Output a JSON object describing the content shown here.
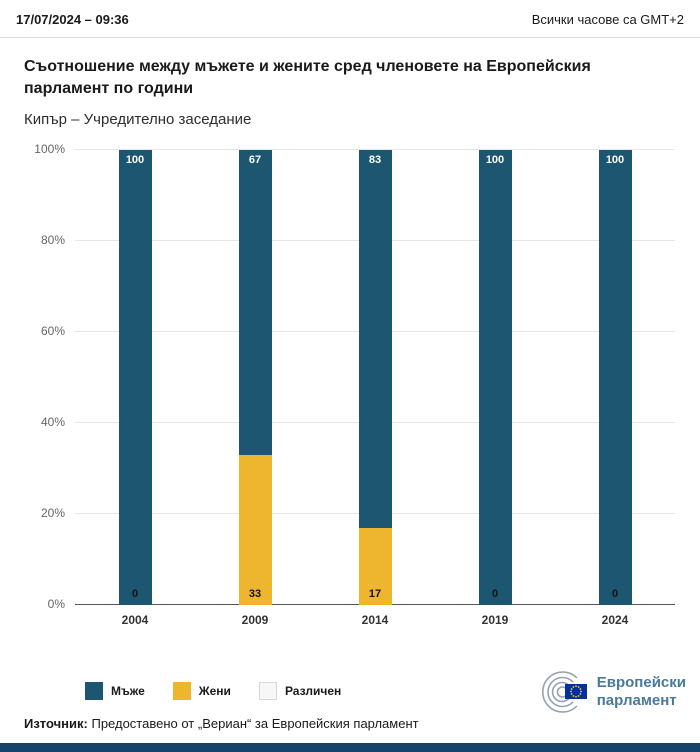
{
  "header": {
    "datetime": "17/07/2024 – 09:36",
    "timezone_note": "Всички часове са GMT+2"
  },
  "title": "Съотношение между мъжете и жените сред членовете на Европейския парламент по години",
  "subtitle": "Кипър – Учредително заседание",
  "chart_data": {
    "type": "bar",
    "stacked": true,
    "title": "Съотношение между мъжете и жените сред членовете на Европейския парламент по години",
    "subtitle": "Кипър – Учредително заседание",
    "categories": [
      "2004",
      "2009",
      "2014",
      "2019",
      "2024"
    ],
    "series": [
      {
        "name": "Мъже",
        "color": "#1d5670",
        "values": [
          100,
          67,
          83,
          100,
          100
        ]
      },
      {
        "name": "Жени",
        "color": "#eeb62f",
        "values": [
          0,
          33,
          17,
          0,
          0
        ]
      },
      {
        "name": "Различен",
        "color": "#f7f7f7",
        "values": [
          0,
          0,
          0,
          0,
          0
        ]
      }
    ],
    "ylim": [
      0,
      100
    ],
    "yticks": [
      "0%",
      "20%",
      "40%",
      "60%",
      "80%",
      "100%"
    ],
    "grid": true,
    "legend_position": "bottom-left"
  },
  "legend": [
    {
      "label": "Мъже",
      "color": "#1d5670",
      "light": false
    },
    {
      "label": "Жени",
      "color": "#eeb62f",
      "light": false
    },
    {
      "label": "Различен",
      "color": "#f7f7f7",
      "light": true
    }
  ],
  "source": {
    "label": "Източник:",
    "text": " Предоставено от „Вериан“ за Европейския парламент"
  },
  "logo": {
    "line1": "Европейски",
    "line2": "парламент"
  },
  "colors": {
    "men": "#1d5670",
    "women": "#eeb62f",
    "different": "#f7f7f7",
    "footer": "#16436a"
  }
}
